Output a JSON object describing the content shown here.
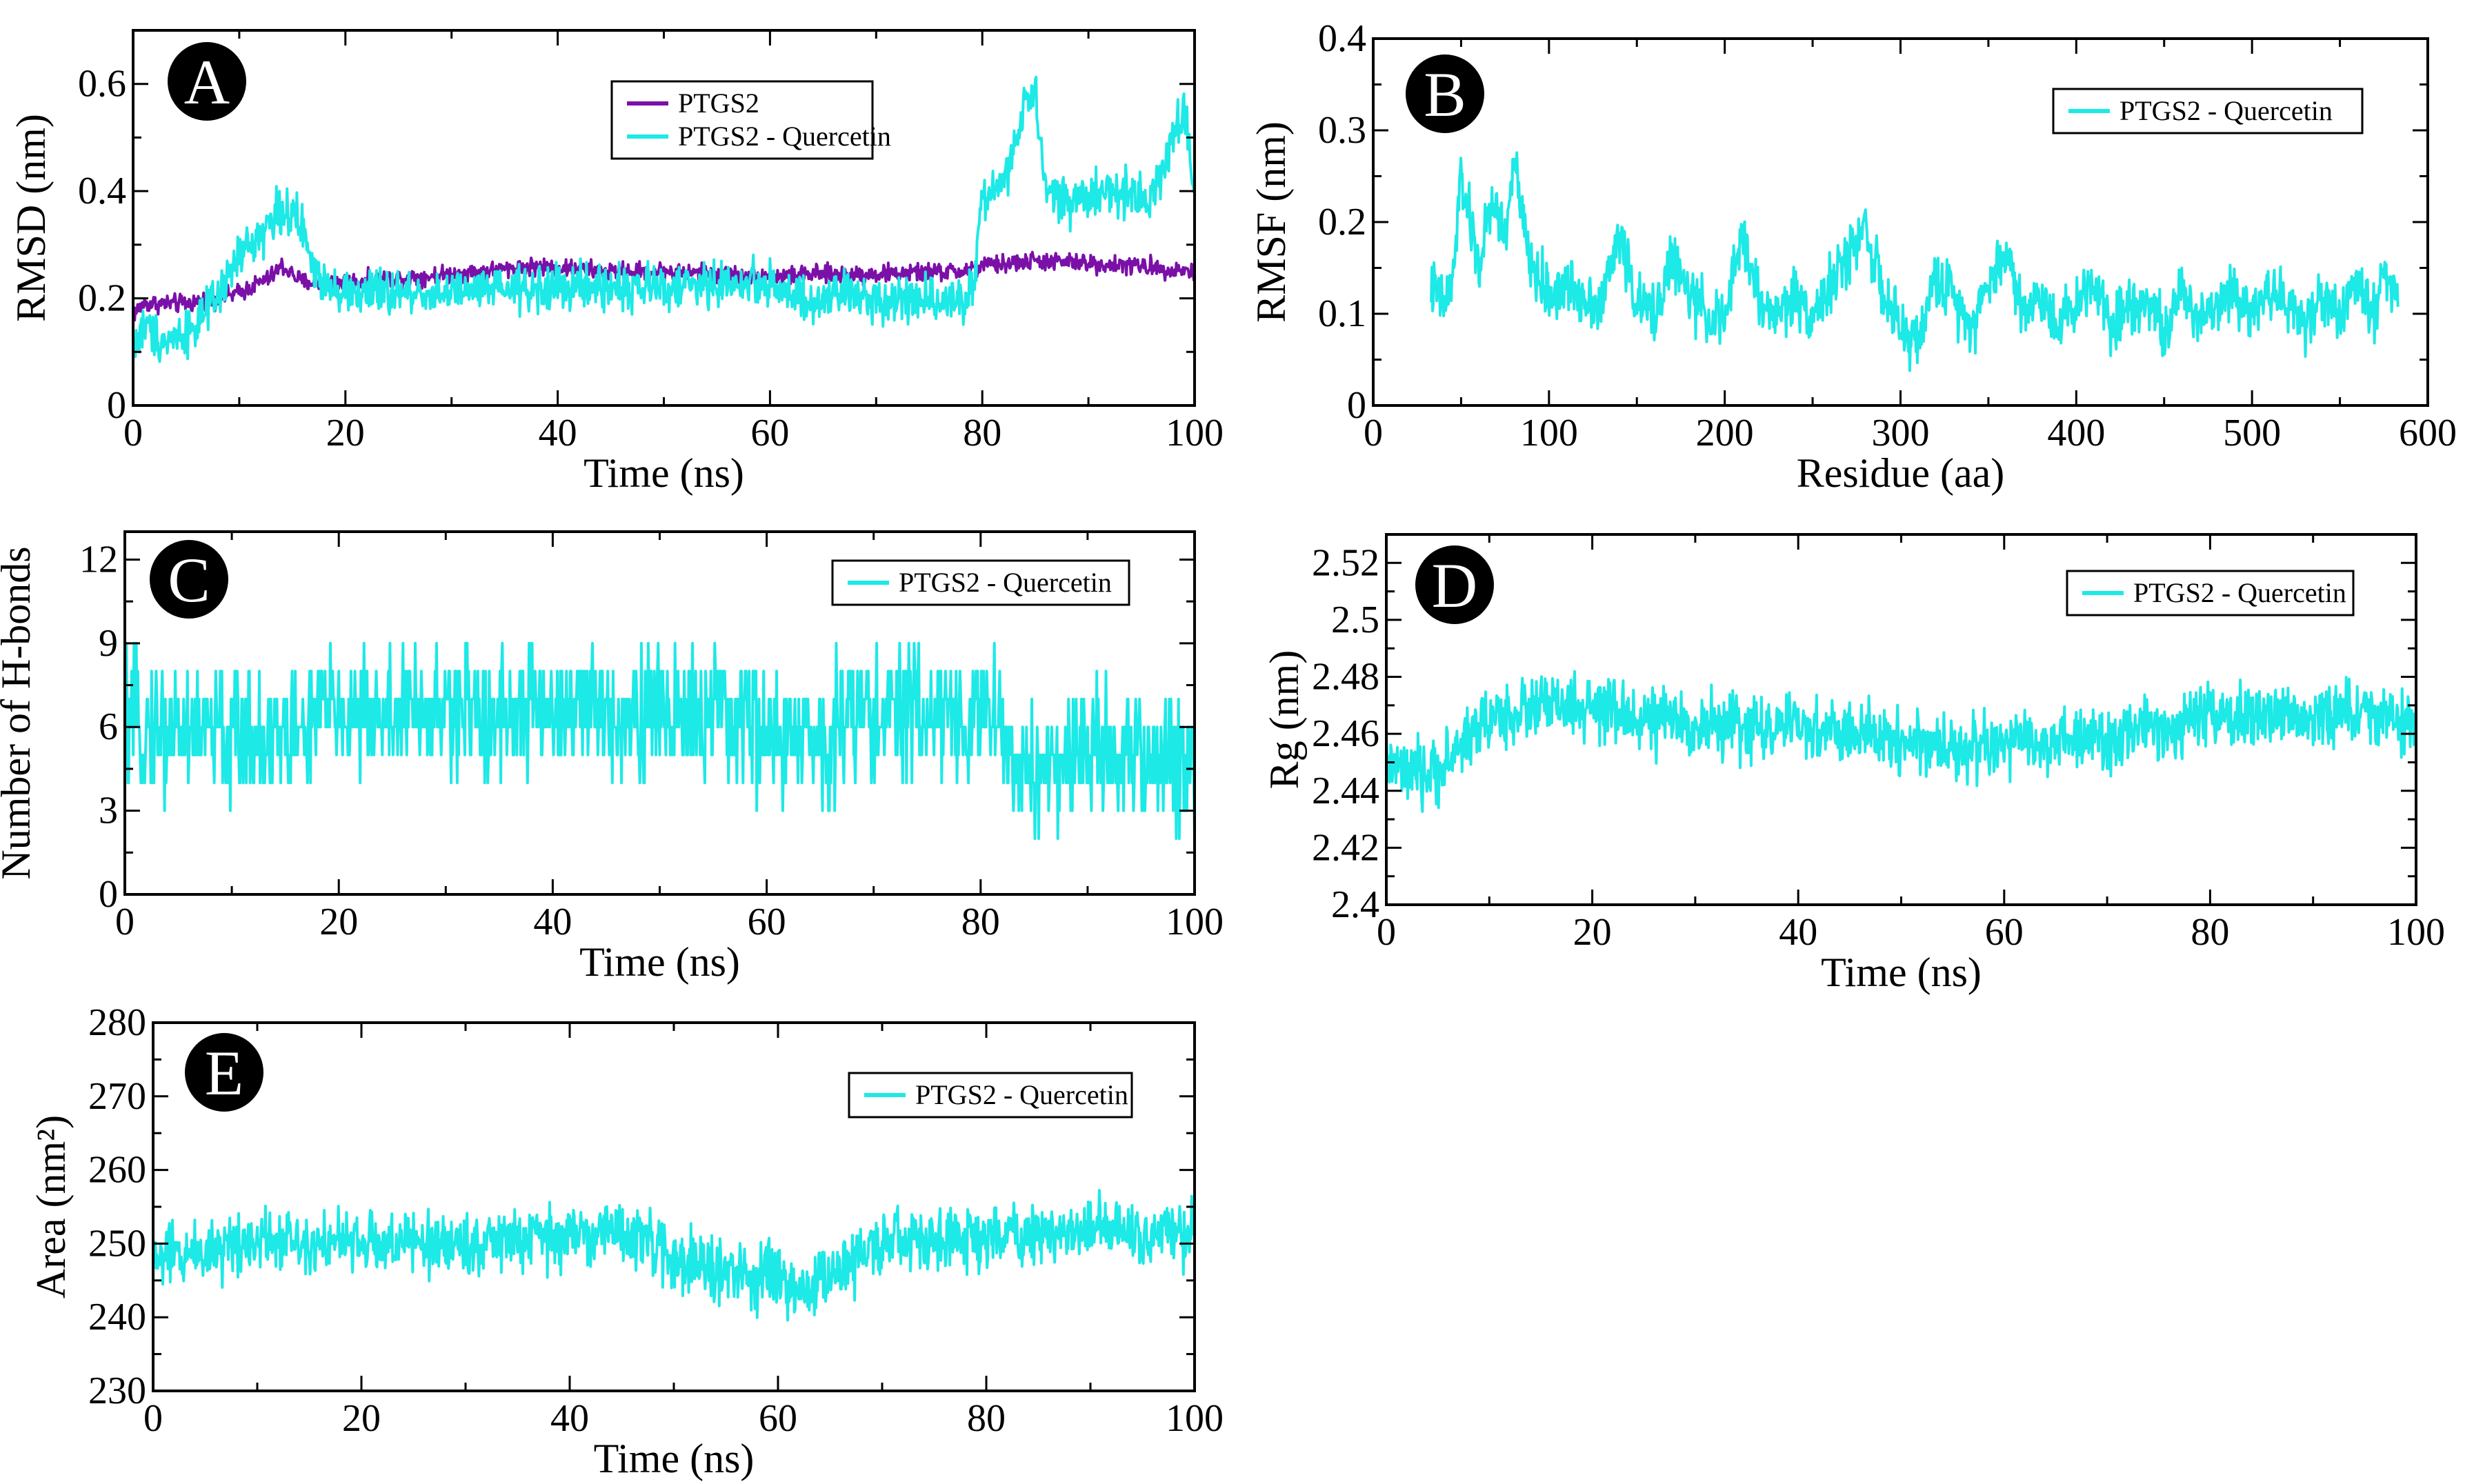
{
  "figure": {
    "panels_note": "Five-panel MD simulation analysis figure"
  },
  "colors": {
    "ligand_complex": "#1de9e6",
    "apo": "#7b10a8",
    "axis": "#000000",
    "badge": "#000000"
  },
  "chart_data": [
    {
      "id": "A",
      "badge": "A",
      "type": "line",
      "xlabel": "Time (ns)",
      "ylabel": "RMSD (nm)",
      "xlim": [
        0,
        100
      ],
      "ylim": [
        0,
        0.7
      ],
      "xticks": [
        0,
        20,
        40,
        60,
        80,
        100
      ],
      "xtick_labels": [
        "0",
        "20",
        "40",
        "60",
        "80",
        "100"
      ],
      "yticks": [
        0,
        0.2,
        0.4,
        0.6
      ],
      "ytick_labels": [
        "0",
        "0.2",
        "0.4",
        "0.6"
      ],
      "legend": [
        "PTGS2",
        "PTGS2 - Quercetin"
      ],
      "series": [
        {
          "name": "PTGS2",
          "color": "#7b10a8",
          "noise": 0.012,
          "x": [
            0,
            1,
            5,
            8,
            10,
            13,
            14,
            16,
            20,
            30,
            38,
            45,
            50,
            60,
            65,
            70,
            78,
            80,
            85,
            90,
            95,
            100
          ],
          "y": [
            0.17,
            0.19,
            0.19,
            0.2,
            0.21,
            0.24,
            0.26,
            0.23,
            0.23,
            0.245,
            0.26,
            0.25,
            0.25,
            0.24,
            0.245,
            0.245,
            0.25,
            0.26,
            0.27,
            0.265,
            0.26,
            0.25
          ]
        },
        {
          "name": "PTGS2 - Quercetin",
          "color": "#1de9e6",
          "noise": 0.03,
          "x": [
            0,
            1,
            3,
            6,
            8,
            10,
            12,
            14,
            16,
            17,
            20,
            30,
            40,
            50,
            60,
            64,
            66,
            70,
            75,
            79,
            80,
            82,
            84,
            85,
            86,
            88,
            92,
            96,
            98,
            99,
            100
          ],
          "y": [
            0.1,
            0.15,
            0.12,
            0.15,
            0.2,
            0.28,
            0.32,
            0.37,
            0.33,
            0.25,
            0.21,
            0.21,
            0.22,
            0.22,
            0.23,
            0.18,
            0.21,
            0.2,
            0.2,
            0.2,
            0.38,
            0.42,
            0.55,
            0.58,
            0.4,
            0.38,
            0.4,
            0.39,
            0.5,
            0.55,
            0.4
          ]
        }
      ]
    },
    {
      "id": "B",
      "badge": "B",
      "type": "line",
      "xlabel": "Residue (aa)",
      "ylabel": "RMSF (nm)",
      "xlim": [
        0,
        600
      ],
      "ylim": [
        0,
        0.4
      ],
      "xticks": [
        0,
        100,
        200,
        300,
        400,
        500,
        600
      ],
      "xtick_labels": [
        "0",
        "100",
        "200",
        "300",
        "400",
        "500",
        "600"
      ],
      "yticks": [
        0,
        0.1,
        0.2,
        0.3,
        0.4
      ],
      "ytick_labels": [
        "0",
        "0.1",
        "0.2",
        "0.3",
        "0.4"
      ],
      "legend": [
        "PTGS2 - Quercetin"
      ],
      "series": [
        {
          "name": "PTGS2 - Quercetin",
          "color": "#1de9e6",
          "noise": 0.022,
          "x": [
            33,
            40,
            45,
            50,
            55,
            60,
            65,
            70,
            75,
            80,
            85,
            90,
            100,
            110,
            120,
            130,
            140,
            150,
            160,
            170,
            180,
            190,
            200,
            210,
            220,
            230,
            240,
            250,
            260,
            270,
            280,
            290,
            300,
            310,
            320,
            330,
            340,
            350,
            360,
            370,
            380,
            390,
            400,
            410,
            420,
            430,
            440,
            450,
            460,
            470,
            480,
            490,
            500,
            510,
            520,
            530,
            540,
            550,
            560,
            570,
            575,
            583
          ],
          "y": [
            0.13,
            0.11,
            0.13,
            0.25,
            0.2,
            0.15,
            0.2,
            0.22,
            0.18,
            0.27,
            0.2,
            0.15,
            0.12,
            0.13,
            0.12,
            0.11,
            0.19,
            0.11,
            0.1,
            0.16,
            0.12,
            0.1,
            0.09,
            0.19,
            0.11,
            0.1,
            0.12,
            0.1,
            0.13,
            0.16,
            0.2,
            0.12,
            0.08,
            0.07,
            0.14,
            0.12,
            0.09,
            0.13,
            0.17,
            0.1,
            0.12,
            0.09,
            0.11,
            0.14,
            0.09,
            0.11,
            0.12,
            0.08,
            0.12,
            0.1,
            0.11,
            0.13,
            0.1,
            0.13,
            0.11,
            0.09,
            0.12,
            0.1,
            0.13,
            0.1,
            0.15,
            0.12
          ]
        }
      ]
    },
    {
      "id": "C",
      "badge": "C",
      "type": "line",
      "xlabel": "Time (ns)",
      "ylabel": "Number of H-bonds",
      "xlim": [
        0,
        100
      ],
      "ylim": [
        0,
        13
      ],
      "xticks": [
        0,
        20,
        40,
        60,
        80,
        100
      ],
      "xtick_labels": [
        "0",
        "20",
        "40",
        "60",
        "80",
        "100"
      ],
      "yticks": [
        0,
        3,
        6,
        9,
        12
      ],
      "ytick_labels": [
        "0",
        "3",
        "6",
        "9",
        "12"
      ],
      "legend": [
        "PTGS2 - Quercetin"
      ],
      "series": [
        {
          "name": "PTGS2 - Quercetin",
          "color": "#1de9e6",
          "noise": 1.6,
          "integer": true,
          "x": [
            0,
            10,
            17,
            18,
            30,
            40,
            55,
            59,
            60,
            66,
            67,
            75,
            82,
            83,
            84,
            90,
            95,
            100
          ],
          "y": [
            6,
            5.8,
            5.8,
            6.5,
            6.5,
            6.6,
            6.4,
            6.2,
            5.5,
            5.5,
            6.5,
            6.5,
            6.3,
            4.5,
            4.3,
            5.3,
            5,
            4.5
          ]
        }
      ]
    },
    {
      "id": "D",
      "badge": "D",
      "type": "line",
      "xlabel": "Time (ns)",
      "ylabel": "Rg (nm)",
      "xlim": [
        0,
        100
      ],
      "ylim": [
        2.4,
        2.53
      ],
      "xticks": [
        0,
        20,
        40,
        60,
        80,
        100
      ],
      "xtick_labels": [
        "0",
        "20",
        "40",
        "60",
        "80",
        "100"
      ],
      "yticks": [
        2.4,
        2.42,
        2.44,
        2.46,
        2.48,
        2.5,
        2.52
      ],
      "ytick_labels": [
        "2.4",
        "2.42",
        "2.44",
        "2.46",
        "2.48",
        "2.5",
        "2.52"
      ],
      "legend": [
        "PTGS2 - Quercetin"
      ],
      "series": [
        {
          "name": "PTGS2 - Quercetin",
          "color": "#1de9e6",
          "noise": 0.008,
          "x": [
            0,
            2,
            4,
            6,
            8,
            10,
            15,
            20,
            30,
            40,
            50,
            55,
            60,
            70,
            75,
            80,
            85,
            90,
            95,
            100
          ],
          "y": [
            2.45,
            2.445,
            2.445,
            2.45,
            2.46,
            2.465,
            2.47,
            2.468,
            2.463,
            2.462,
            2.458,
            2.455,
            2.456,
            2.458,
            2.462,
            2.465,
            2.466,
            2.466,
            2.468,
            2.462
          ]
        }
      ]
    },
    {
      "id": "E",
      "badge": "E",
      "type": "line",
      "xlabel": "Time (ns)",
      "ylabel": "Area (nm²)",
      "xlim": [
        0,
        100
      ],
      "ylim": [
        230,
        280
      ],
      "xticks": [
        0,
        20,
        40,
        60,
        80,
        100
      ],
      "xtick_labels": [
        "0",
        "20",
        "40",
        "60",
        "80",
        "100"
      ],
      "yticks": [
        230,
        240,
        250,
        260,
        270,
        280
      ],
      "ytick_labels": [
        "230",
        "240",
        "250",
        "260",
        "270",
        "280"
      ],
      "legend": [
        "PTGS2 - Quercetin"
      ],
      "series": [
        {
          "name": "PTGS2 - Quercetin",
          "color": "#1de9e6",
          "noise": 3.0,
          "x": [
            0,
            5,
            10,
            20,
            30,
            40,
            45,
            50,
            55,
            60,
            62,
            65,
            70,
            80,
            90,
            100
          ],
          "y": [
            248,
            249,
            251,
            250,
            250,
            251,
            252,
            248,
            246,
            245,
            243,
            246,
            250,
            251,
            252,
            251
          ]
        }
      ]
    }
  ]
}
